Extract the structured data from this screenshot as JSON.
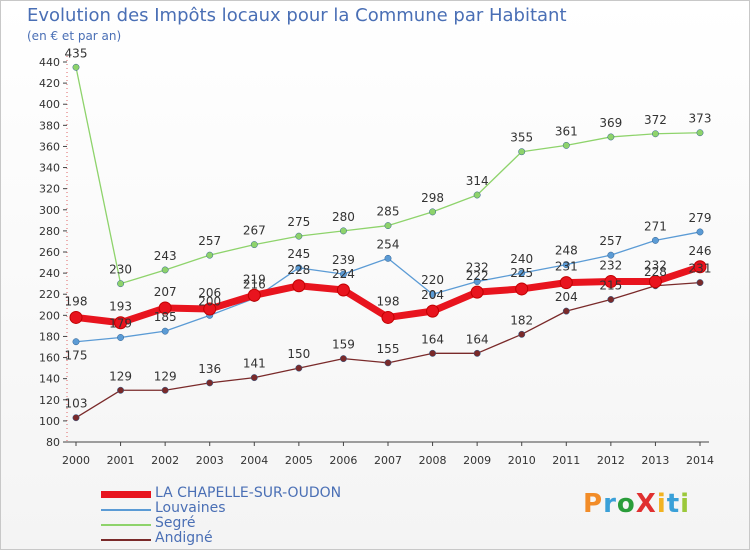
{
  "title": "Evolution des Impôts locaux pour la Commune par Habitant",
  "subtitle": "(en € et par an)",
  "logo": "ProXiti",
  "chart_data": {
    "type": "line",
    "x": [
      "2000",
      "2001",
      "2002",
      "2003",
      "2004",
      "2005",
      "2006",
      "2007",
      "2008",
      "2009",
      "2010",
      "2011",
      "2012",
      "2013",
      "2014"
    ],
    "ylim": [
      80,
      440
    ],
    "yticks": [
      80,
      100,
      120,
      140,
      160,
      180,
      200,
      220,
      240,
      260,
      280,
      300,
      320,
      340,
      360,
      380,
      400,
      420,
      440
    ],
    "grid": false,
    "legend_position": "bottom-left",
    "series": [
      {
        "name": "LA CHAPELLE-SUR-OUDON",
        "color": "#e8141e",
        "values": [
          198,
          193,
          207,
          206,
          219,
          228,
          224,
          198,
          204,
          222,
          225,
          231,
          232,
          232,
          246
        ],
        "labels": [
          "198",
          "193",
          "207",
          "206",
          "219",
          "228",
          "224",
          "198",
          "204",
          "222",
          "225",
          "231",
          "232",
          "232",
          "246"
        ]
      },
      {
        "name": "Louvaines",
        "color": "#5b9bd5",
        "values": [
          175,
          179,
          185,
          200,
          216,
          245,
          239,
          254,
          220,
          232,
          240,
          248,
          257,
          271,
          279
        ],
        "labels": [
          "175",
          "179",
          "185",
          "200",
          "216",
          "245",
          "239",
          "254",
          "220",
          "232",
          "240",
          "248",
          "257",
          "271",
          "279"
        ]
      },
      {
        "name": "Segré",
        "color": "#8ed36b",
        "values": [
          435,
          230,
          243,
          257,
          267,
          275,
          280,
          285,
          298,
          314,
          355,
          361,
          369,
          372,
          373
        ],
        "labels": [
          "435",
          "230",
          "243",
          "257",
          "267",
          "275",
          "280",
          "285",
          "298",
          "314",
          "355",
          "361",
          "369",
          "372",
          "373"
        ]
      },
      {
        "name": "Andigné",
        "color": "#7a2a2a",
        "values": [
          103,
          129,
          129,
          136,
          141,
          150,
          159,
          155,
          164,
          164,
          182,
          204,
          215,
          228,
          231
        ],
        "labels": [
          "103",
          "129",
          "129",
          "136",
          "141",
          "150",
          "159",
          "155",
          "164",
          "164",
          "182",
          "204",
          "215",
          "228",
          "231"
        ]
      }
    ]
  }
}
